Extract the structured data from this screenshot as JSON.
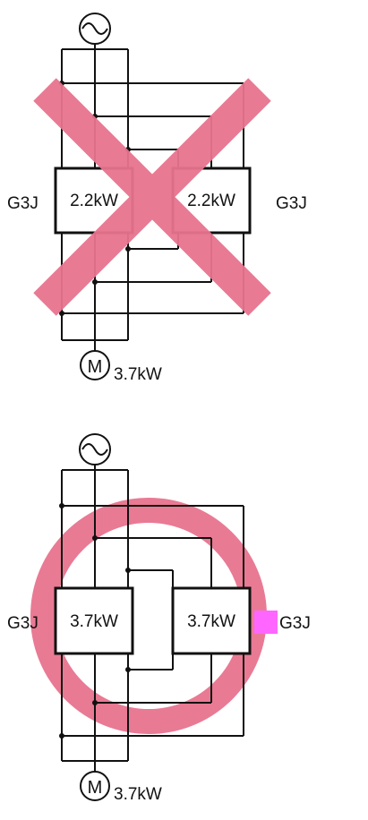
{
  "colors": {
    "line": "#111111",
    "mark": "#e8738e",
    "highlight": "#ff66ff",
    "background": "#ffffff"
  },
  "top": {
    "verdict": "wrong",
    "source_icon": "ac-source-icon",
    "left_unit": {
      "label": "G3J",
      "rating": "2.2kW"
    },
    "right_unit": {
      "label": "G3J",
      "rating": "2.2kW"
    },
    "motor": {
      "symbol": "M",
      "rating": "3.7kW"
    }
  },
  "bottom": {
    "verdict": "correct",
    "source_icon": "ac-source-icon",
    "left_unit": {
      "label": "G3J",
      "rating": "3.7kW"
    },
    "right_unit": {
      "label": "G3J",
      "rating": "3.7kW"
    },
    "motor": {
      "symbol": "M",
      "rating": "3.7kW"
    }
  }
}
